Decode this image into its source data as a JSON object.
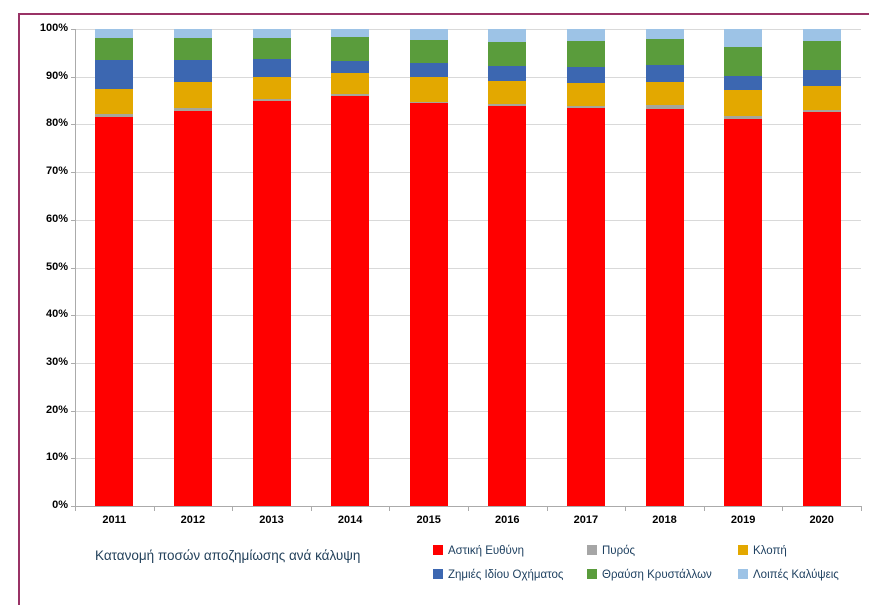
{
  "title": "Κατανομή ποσών αποζημίωσης ανά κάλυψη",
  "colors": {
    "frame_border": "#993366",
    "gridline": "#d9d9d9",
    "axis_line": "#ababab",
    "tick": "#ababab",
    "axis_text": "#000000",
    "title_text": "#24425c",
    "legend_text": "#1f4161",
    "background": "#ffffff"
  },
  "chart_data": {
    "type": "bar",
    "stacked": true,
    "percent_stacked": true,
    "title": "Κατανομή ποσών αποζημίωσης ανά κάλυψη",
    "xlabel": "",
    "ylabel": "",
    "ylim": [
      0,
      100
    ],
    "yticks": [
      "0%",
      "10%",
      "20%",
      "30%",
      "40%",
      "50%",
      "60%",
      "70%",
      "80%",
      "90%",
      "100%"
    ],
    "grid": true,
    "legend_position": "bottom",
    "categories": [
      "2011",
      "2012",
      "2013",
      "2014",
      "2015",
      "2016",
      "2017",
      "2018",
      "2019",
      "2020"
    ],
    "series": [
      {
        "name": "Αστική Ευθύνη",
        "color": "#ff0000",
        "values": [
          81.6,
          82.9,
          85.0,
          86.0,
          84.4,
          83.9,
          83.4,
          83.3,
          81.2,
          82.5
        ]
      },
      {
        "name": "Πυρός",
        "color": "#a6a69a",
        "values": [
          0.6,
          0.6,
          0.4,
          0.3,
          0.4,
          0.3,
          0.5,
          0.7,
          0.5,
          0.5
        ]
      },
      {
        "name": "Κλοπή",
        "color": "#e3a800",
        "values": [
          5.2,
          5.4,
          4.6,
          4.4,
          5.2,
          5.0,
          4.7,
          4.9,
          5.5,
          5.1
        ]
      },
      {
        "name": "Ζημιές Ιδίου Οχήματος",
        "color": "#3c67b1",
        "values": [
          6.1,
          4.7,
          3.8,
          2.6,
          2.9,
          3.0,
          3.4,
          3.6,
          3.0,
          3.4
        ]
      },
      {
        "name": "Θραύση Κρυστάλλων",
        "color": "#5a9c3c",
        "values": [
          4.6,
          4.6,
          4.4,
          5.1,
          4.8,
          5.0,
          5.4,
          5.5,
          6.1,
          6.0
        ]
      },
      {
        "name": "Λοιπές Καλύψεις",
        "color": "#9dc3e6",
        "values": [
          1.9,
          1.8,
          1.8,
          1.6,
          2.3,
          2.8,
          2.6,
          2.0,
          3.7,
          2.5
        ]
      }
    ],
    "legend_swatch_colors": [
      "#ff0000",
      "#a6a6a6",
      "#e3a800",
      "#3c67b1",
      "#5a9c3c",
      "#9dc3e6"
    ]
  }
}
